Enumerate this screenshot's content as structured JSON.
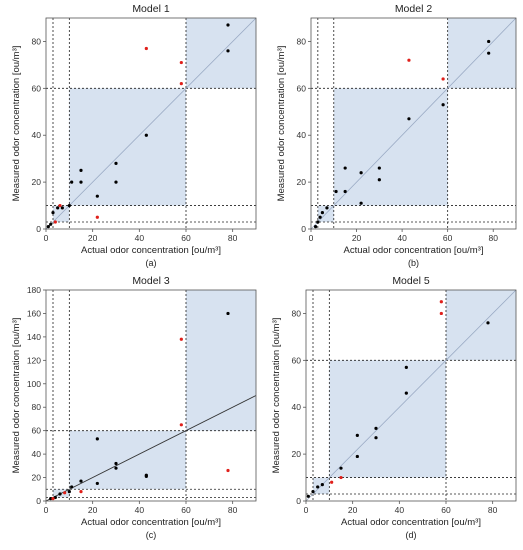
{
  "chart_data": [
    {
      "type": "scatter",
      "title": "Model 1",
      "panel_label": "(a)",
      "xlabel": "Actual odor concentration [ou/m³]",
      "ylabel": "Measured odor concentration [ou/m³]",
      "xlim": [
        0,
        90
      ],
      "ylim": [
        0,
        90
      ],
      "xticks": [
        0,
        20,
        40,
        60,
        80
      ],
      "yticks": [
        0,
        20,
        40,
        60,
        80
      ],
      "ref_lines": [
        3,
        10,
        60
      ],
      "shaded_regions": [
        [
          3,
          3,
          10,
          10
        ],
        [
          10,
          10,
          60,
          60
        ],
        [
          60,
          60,
          90,
          90
        ]
      ],
      "fit_line": [
        [
          0,
          0
        ],
        [
          90,
          90
        ]
      ],
      "series": [
        {
          "color": "#000000",
          "points": [
            [
              1,
              1
            ],
            [
              2,
              2
            ],
            [
              3,
              7
            ],
            [
              5,
              9
            ],
            [
              7,
              9
            ],
            [
              10,
              10
            ],
            [
              11,
              20
            ],
            [
              15,
              20
            ],
            [
              15,
              25
            ],
            [
              22,
              14
            ],
            [
              30,
              20
            ],
            [
              30,
              28
            ],
            [
              43,
              40
            ],
            [
              78,
              76
            ],
            [
              78,
              87
            ]
          ]
        },
        {
          "color": "#e0201b",
          "points": [
            [
              4,
              3
            ],
            [
              6,
              10
            ],
            [
              22,
              5
            ],
            [
              43,
              77
            ],
            [
              58,
              71
            ],
            [
              58,
              62
            ]
          ]
        }
      ]
    },
    {
      "type": "scatter",
      "title": "Model 2",
      "panel_label": "(b)",
      "xlabel": "Actual odor concentration [ou/m³]",
      "ylabel": "Measured odor concentration [ou/m³]",
      "xlim": [
        0,
        90
      ],
      "ylim": [
        0,
        90
      ],
      "xticks": [
        0,
        20,
        40,
        60,
        80
      ],
      "yticks": [
        0,
        20,
        40,
        60,
        80
      ],
      "ref_lines": [
        3,
        10,
        60
      ],
      "shaded_regions": [
        [
          3,
          3,
          10,
          10
        ],
        [
          10,
          10,
          60,
          60
        ],
        [
          60,
          60,
          90,
          90
        ]
      ],
      "fit_line": [
        [
          0,
          0
        ],
        [
          90,
          90
        ]
      ],
      "series": [
        {
          "color": "#000000",
          "points": [
            [
              2,
              1
            ],
            [
              3,
              3
            ],
            [
              4,
              5
            ],
            [
              5,
              7
            ],
            [
              7,
              9
            ],
            [
              11,
              16
            ],
            [
              15,
              16
            ],
            [
              15,
              26
            ],
            [
              22,
              11
            ],
            [
              22,
              24
            ],
            [
              30,
              21
            ],
            [
              30,
              26
            ],
            [
              43,
              47
            ],
            [
              58,
              53
            ],
            [
              78,
              75
            ],
            [
              78,
              80
            ]
          ]
        },
        {
          "color": "#e0201b",
          "points": [
            [
              43,
              72
            ],
            [
              58,
              64
            ]
          ]
        }
      ]
    },
    {
      "type": "scatter",
      "title": "Model 3",
      "panel_label": "(c)",
      "xlabel": "Actual odor concentration [ou/m³]",
      "ylabel": "Measured odor concentration [ou/m³]",
      "xlim": [
        0,
        90
      ],
      "ylim": [
        0,
        180
      ],
      "xticks": [
        0,
        20,
        40,
        60,
        80
      ],
      "yticks": [
        0,
        20,
        40,
        60,
        80,
        100,
        120,
        140,
        160,
        180
      ],
      "ref_lines": [
        3,
        10,
        60
      ],
      "shaded_regions": [
        [
          3,
          3,
          10,
          10
        ],
        [
          10,
          10,
          60,
          60
        ],
        [
          60,
          60,
          90,
          180
        ]
      ],
      "fit_line": [
        [
          0,
          0
        ],
        [
          90,
          90
        ]
      ],
      "series": [
        {
          "color": "#000000",
          "points": [
            [
              2,
              2
            ],
            [
              4,
              3
            ],
            [
              6,
              6
            ],
            [
              10,
              8
            ],
            [
              11,
              12
            ],
            [
              15,
              17
            ],
            [
              22,
              15
            ],
            [
              22,
              53
            ],
            [
              30,
              28
            ],
            [
              30,
              32
            ],
            [
              43,
              21
            ],
            [
              43,
              22
            ],
            [
              78,
              160
            ]
          ]
        },
        {
          "color": "#e0201b",
          "points": [
            [
              3,
              2
            ],
            [
              8,
              7
            ],
            [
              15,
              8
            ],
            [
              58,
              138
            ],
            [
              58,
              65
            ],
            [
              78,
              26
            ]
          ]
        }
      ]
    },
    {
      "type": "scatter",
      "title": "Model 5",
      "panel_label": "(d)",
      "xlabel": "Actual odor concentration [ou/m³]",
      "ylabel": "Measured odor concentration [ou/m³]",
      "xlim": [
        0,
        90
      ],
      "ylim": [
        0,
        90
      ],
      "xticks": [
        0,
        20,
        40,
        60,
        80
      ],
      "yticks": [
        0,
        20,
        40,
        60,
        80
      ],
      "ref_lines": [
        3,
        10,
        60
      ],
      "shaded_regions": [
        [
          3,
          3,
          10,
          10
        ],
        [
          10,
          10,
          60,
          60
        ],
        [
          60,
          60,
          90,
          90
        ]
      ],
      "fit_line": [
        [
          0,
          0
        ],
        [
          90,
          90
        ]
      ],
      "series": [
        {
          "color": "#000000",
          "points": [
            [
              1,
              2
            ],
            [
              3,
              4
            ],
            [
              5,
              6
            ],
            [
              7,
              7
            ],
            [
              15,
              14
            ],
            [
              22,
              19
            ],
            [
              22,
              28
            ],
            [
              30,
              27
            ],
            [
              30,
              31
            ],
            [
              43,
              46
            ],
            [
              43,
              57
            ],
            [
              78,
              76
            ]
          ]
        },
        {
          "color": "#e0201b",
          "points": [
            [
              11,
              8
            ],
            [
              15,
              10
            ],
            [
              58,
              80
            ],
            [
              58,
              85
            ]
          ]
        }
      ]
    }
  ]
}
